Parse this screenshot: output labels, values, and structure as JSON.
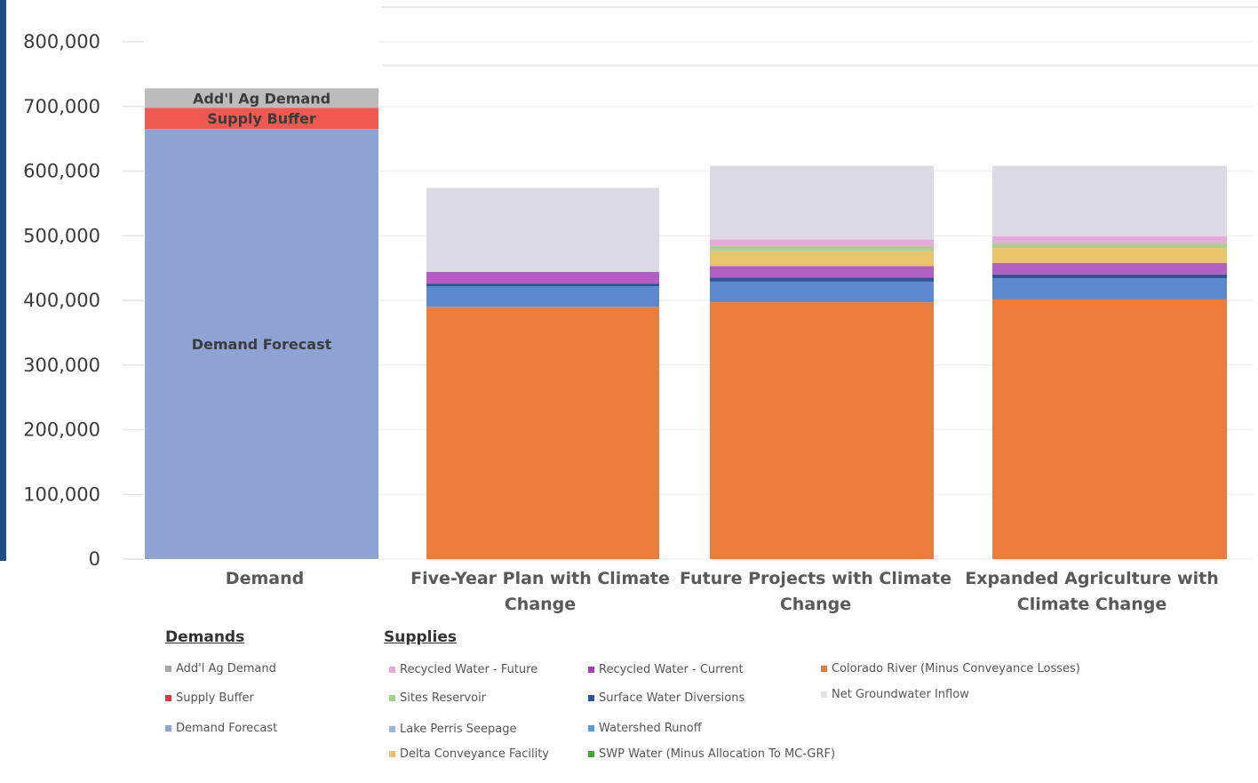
{
  "chart_data": {
    "type": "bar",
    "stacked": true,
    "categories": [
      "Demand",
      "Five-Year Plan with Climate Change",
      "Future Projects with Climate Change",
      "Expanded Agriculture with Climate Change"
    ],
    "category_lines": [
      [
        "Demand"
      ],
      [
        "Five-Year Plan with Climate",
        "Change"
      ],
      [
        "Future Projects with Climate",
        "Change"
      ],
      [
        "Expanded Agriculture with",
        "Climate Change"
      ]
    ],
    "ylim": [
      0,
      800000
    ],
    "yticks": [
      "0",
      "100,000",
      "200,000",
      "300,000",
      "400,000",
      "500,000",
      "600,000",
      "700,000",
      "800,000"
    ],
    "grid": true,
    "series": [
      {
        "name": "Demand Forecast",
        "color": "#8fa2d4",
        "values": [
          665000,
          0,
          0,
          0
        ],
        "inbar_label": "Demand Forecast"
      },
      {
        "name": "Supply Buffer",
        "color": "#ee5a52",
        "values": [
          33000,
          0,
          0,
          0
        ],
        "inbar_label": "Supply Buffer"
      },
      {
        "name": "Add'l Ag Demand",
        "color": "#bcbcbc",
        "values": [
          30000,
          0,
          0,
          0
        ],
        "inbar_label": "Add'l Ag Demand"
      },
      {
        "name": "Colorado River (Minus Conveyance Losses)",
        "color": "#ec7c3c",
        "values": [
          0,
          390000,
          397000,
          402000
        ]
      },
      {
        "name": "Watershed Runoff",
        "color": "#5b88cf",
        "values": [
          0,
          32000,
          32000,
          32000
        ]
      },
      {
        "name": "Surface Water Diversions",
        "color": "#2f5597",
        "values": [
          0,
          4000,
          6000,
          6000
        ]
      },
      {
        "name": "Recycled Water - Current",
        "color": "#b05fc4",
        "values": [
          0,
          18000,
          18000,
          18000
        ]
      },
      {
        "name": "Delta Conveyance Facility",
        "color": "#e8c56a",
        "values": [
          0,
          0,
          23000,
          23000
        ]
      },
      {
        "name": "Sites Reservoir",
        "color": "#a9d08e",
        "values": [
          0,
          0,
          8000,
          8000
        ]
      },
      {
        "name": "Recycled Water - Future",
        "color": "#e7a8dc",
        "values": [
          0,
          0,
          10000,
          10000
        ]
      },
      {
        "name": "Net Groundwater Inflow",
        "color": "#dcd8e4",
        "values": [
          0,
          130000,
          114000,
          109000
        ]
      }
    ]
  },
  "legend": {
    "demands_title": "Demands",
    "supplies_title": "Supplies",
    "demands": [
      {
        "label": "Add'l Ag Demand",
        "color": "#a6a6a6"
      },
      {
        "label": "Supply Buffer",
        "color": "#e0363f"
      },
      {
        "label": "Demand Forecast",
        "color": "#8fa2d4"
      }
    ],
    "supplies": [
      {
        "label": "Recycled Water - Future",
        "color": "#e7a8dc"
      },
      {
        "label": "Sites Reservoir",
        "color": "#a9d08e"
      },
      {
        "label": "Lake Perris Seepage",
        "color": "#9fb4e0"
      },
      {
        "label": "Delta Conveyance Facility",
        "color": "#e8c56a"
      },
      {
        "label": "Recycled Water - Current",
        "color": "#a040b8"
      },
      {
        "label": "Surface Water Diversions",
        "color": "#2f5597"
      },
      {
        "label": "Watershed Runoff",
        "color": "#5b9bd5"
      },
      {
        "label": "SWP Water (Minus Allocation To MC-GRF)",
        "color": "#3fa535"
      },
      {
        "label": "Colorado River (Minus Conveyance Losses)",
        "color": "#ec7c3c"
      },
      {
        "label": "Net Groundwater Inflow",
        "color": "#e3e3e3"
      }
    ]
  }
}
